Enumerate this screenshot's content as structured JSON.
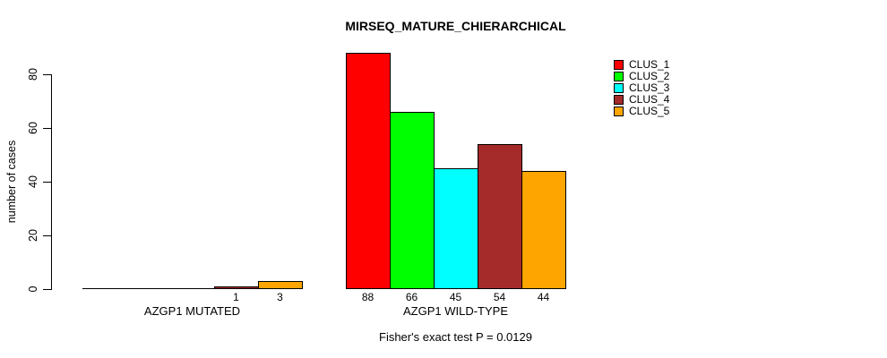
{
  "figure": {
    "background_color": "#ffffff",
    "text_color": "#000000",
    "axis_color": "#000000"
  },
  "chart_data": {
    "type": "bar",
    "title": "MIRSEQ_MATURE_CHIERARCHICAL",
    "xlabel": "",
    "ylabel": "number of cases",
    "ylim": [
      0,
      88
    ],
    "yticks": [
      0,
      20,
      40,
      60,
      80
    ],
    "grid": false,
    "legend_position": "top-right",
    "series_names": [
      "CLUS_1",
      "CLUS_2",
      "CLUS_3",
      "CLUS_4",
      "CLUS_5"
    ],
    "series_colors": [
      "#ff0000",
      "#00ff00",
      "#00ffff",
      "#a52a2a",
      "#ffa500"
    ],
    "groups": [
      {
        "label": "AZGP1 MUTATED",
        "values": [
          0,
          0,
          0,
          1,
          3
        ],
        "bar_labels": [
          "",
          "",
          "",
          "1",
          "3"
        ]
      },
      {
        "label": "AZGP1 WILD-TYPE",
        "values": [
          88,
          66,
          45,
          54,
          44
        ],
        "bar_labels": [
          "88",
          "66",
          "45",
          "54",
          "44"
        ]
      }
    ],
    "annotation": "Fisher's exact test P = 0.0129"
  }
}
